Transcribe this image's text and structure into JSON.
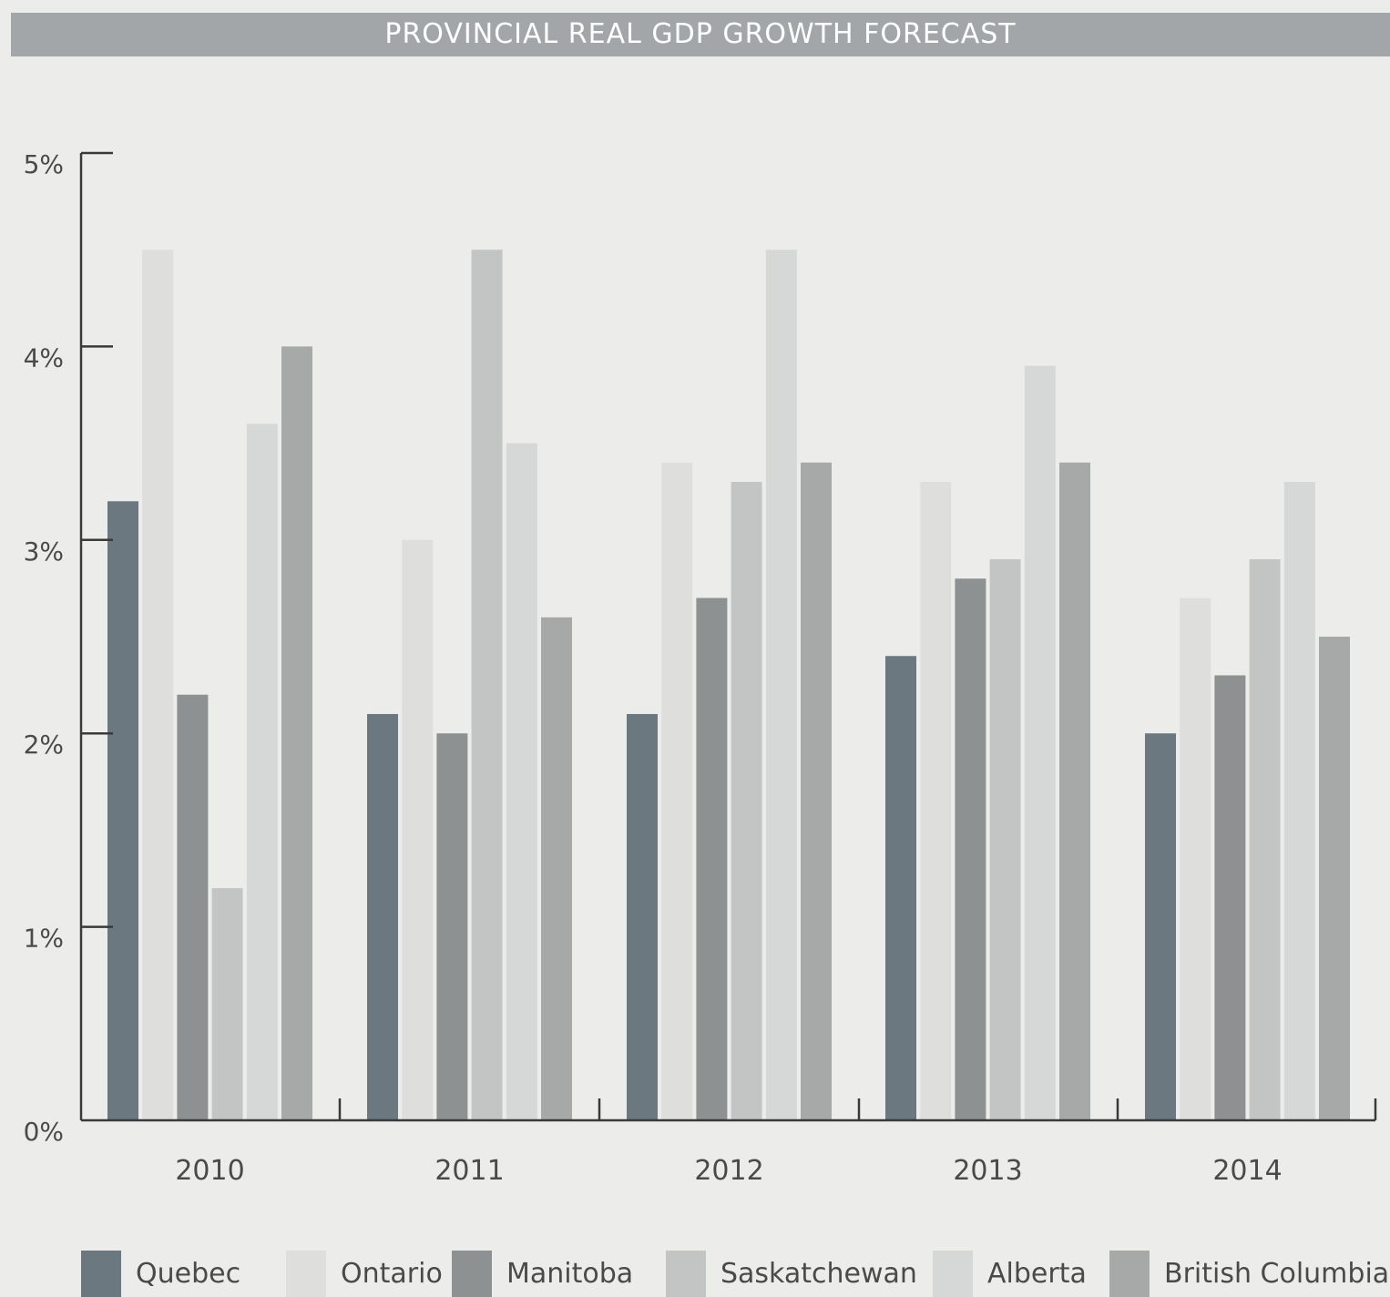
{
  "chart_data": {
    "type": "bar",
    "title": "PROVINCIAL REAL GDP GROWTH FORECAST",
    "xlabel": "",
    "ylabel": "",
    "ylim": [
      0,
      5
    ],
    "yticks": [
      "0%",
      "1%",
      "2%",
      "3%",
      "4%",
      "5%"
    ],
    "categories": [
      "2010",
      "2011",
      "2012",
      "2013",
      "2014"
    ],
    "grid": false,
    "legend_position": "bottom",
    "series": [
      {
        "name": "Quebec",
        "color": "#6b7880",
        "values": [
          3.2,
          2.1,
          2.1,
          2.4,
          2.0
        ]
      },
      {
        "name": "Ontario",
        "color": "#dededd",
        "values": [
          4.5,
          3.0,
          3.4,
          3.3,
          2.7
        ]
      },
      {
        "name": "Manitoba",
        "color": "#8e9191",
        "values": [
          2.2,
          2.0,
          2.7,
          2.8,
          2.3
        ]
      },
      {
        "name": "Saskatchewan",
        "color": "#c3c5c5",
        "values": [
          1.2,
          4.5,
          3.3,
          2.9,
          2.9
        ]
      },
      {
        "name": "Alberta",
        "color": "#d6d7d7",
        "values": [
          3.6,
          3.5,
          4.5,
          3.9,
          3.3
        ]
      },
      {
        "name": "British Columbia",
        "color": "#a7a9a9",
        "values": [
          4.0,
          2.6,
          3.4,
          3.4,
          2.5
        ]
      }
    ]
  }
}
